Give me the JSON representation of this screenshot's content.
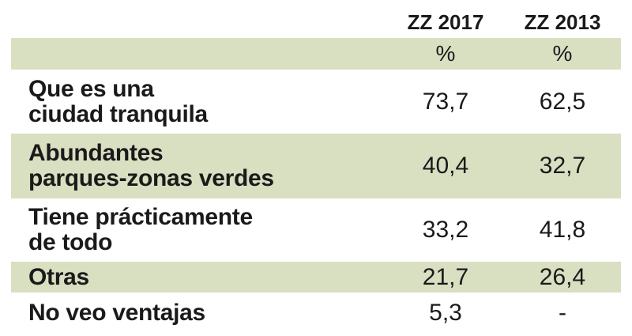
{
  "chart_data": {
    "type": "table",
    "columns": [
      "ZZ 2017",
      "ZZ 2013"
    ],
    "unit": "%",
    "rows": [
      {
        "label": "Que es una ciudad tranquila",
        "label_lines": [
          "Que es una",
          "ciudad tranquila"
        ],
        "values": [
          "73,7",
          "62,5"
        ]
      },
      {
        "label": "Abundantes parques-zonas verdes",
        "label_lines": [
          "Abundantes",
          "parques-zonas verdes"
        ],
        "values": [
          "40,4",
          "32,7"
        ]
      },
      {
        "label": "Tiene prácticamente de todo",
        "label_lines": [
          "Tiene prácticamente",
          "de todo"
        ],
        "values": [
          "33,2",
          "41,8"
        ]
      },
      {
        "label": "Otras",
        "label_lines": [
          "Otras"
        ],
        "values": [
          "21,7",
          "26,4"
        ]
      },
      {
        "label": "No veo ventajas",
        "label_lines": [
          "No veo ventajas"
        ],
        "values": [
          "5,3",
          "-"
        ]
      }
    ]
  },
  "colors": {
    "row_shade": "#d9dfc1",
    "text": "#1a1a1a"
  }
}
